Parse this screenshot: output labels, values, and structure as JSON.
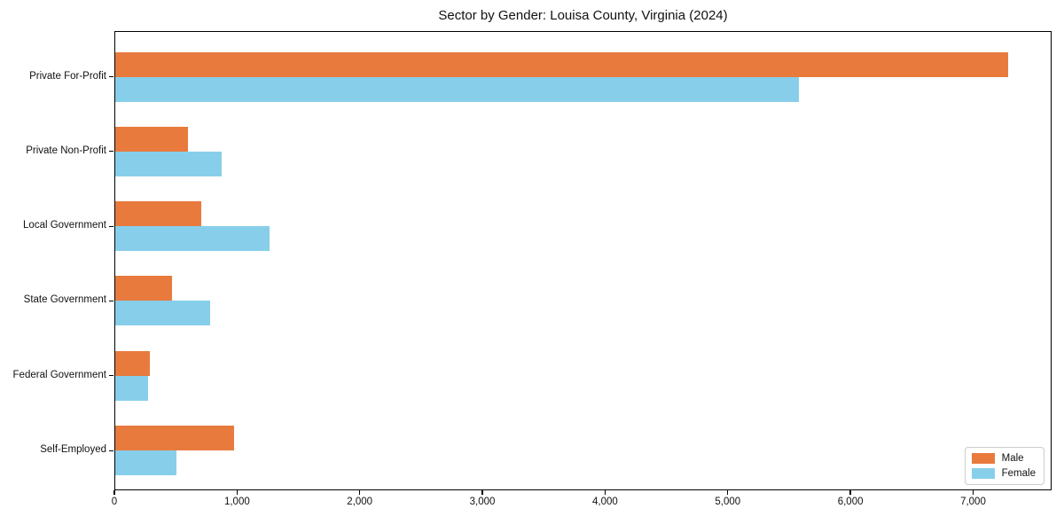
{
  "chart_data": {
    "type": "bar",
    "orientation": "horizontal",
    "title": "Sector by Gender: Louisa County, Virginia (2024)",
    "categories": [
      "Private For-Profit",
      "Private Non-Profit",
      "Local Government",
      "State Government",
      "Federal Government",
      "Self-Employed"
    ],
    "series": [
      {
        "name": "Male",
        "color": "#e87a3e",
        "values": [
          7280,
          590,
          700,
          465,
          285,
          970
        ]
      },
      {
        "name": "Female",
        "color": "#87ceeb",
        "values": [
          5570,
          870,
          1260,
          775,
          265,
          500
        ]
      }
    ],
    "xlabel": "",
    "ylabel": "",
    "xlim": [
      0,
      7640
    ],
    "xticks": [
      0,
      1000,
      2000,
      3000,
      4000,
      5000,
      6000,
      7000
    ],
    "xtick_labels": [
      "0",
      "1,000",
      "2,000",
      "3,000",
      "4,000",
      "5,000",
      "6,000",
      "7,000"
    ],
    "grid": false,
    "legend_position": "lower right",
    "colors": {
      "axis": "#000000",
      "legend_border": "#cccccc",
      "text": "#111111"
    }
  }
}
